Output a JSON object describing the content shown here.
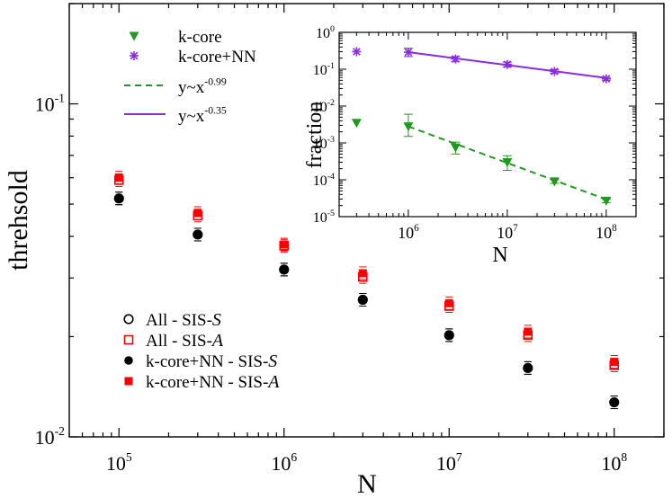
{
  "chart_data": [
    {
      "type": "scatter",
      "scale": "log-log",
      "xlabel": "N",
      "ylabel": "threhsold",
      "xlim": [
        50000,
        200000000
      ],
      "ylim": [
        0.01,
        0.2
      ],
      "x_ticks": [
        {
          "value": 100000,
          "base": "10",
          "exp": "5"
        },
        {
          "value": 1000000,
          "base": "10",
          "exp": "6"
        },
        {
          "value": 10000000,
          "base": "10",
          "exp": "7"
        },
        {
          "value": 100000000,
          "base": "10",
          "exp": "8"
        }
      ],
      "y_ticks": [
        {
          "value": 0.01,
          "base": "10",
          "exp": "-2"
        },
        {
          "value": 0.1,
          "base": "10",
          "exp": "-1"
        }
      ],
      "x": [
        100000,
        300000,
        1000000,
        3000000,
        10000000,
        30000000,
        100000000
      ],
      "series": [
        {
          "name": "All - SIS-",
          "suffix": "S",
          "marker": "open-circle",
          "color": "#000000",
          "values": [
            0.052,
            0.0405,
            0.0318,
            0.0258,
            0.0202,
            0.0161,
            0.0127
          ]
        },
        {
          "name": "All - SIS-",
          "suffix": "A",
          "marker": "open-square",
          "color": "#ff0000",
          "values": [
            0.059,
            0.0462,
            0.0375,
            0.0302,
            0.0247,
            0.0202,
            0.0164
          ]
        },
        {
          "name": "k-core+NN - SIS-",
          "suffix": "S",
          "marker": "filled-circle",
          "color": "#000000",
          "values": [
            0.052,
            0.0405,
            0.0318,
            0.0258,
            0.0202,
            0.0161,
            0.0127
          ]
        },
        {
          "name": "k-core+NN - SIS-",
          "suffix": "A",
          "marker": "filled-square",
          "color": "#ff0000",
          "values": [
            0.06,
            0.047,
            0.0378,
            0.031,
            0.0252,
            0.0207,
            0.0168
          ]
        }
      ]
    },
    {
      "type": "scatter",
      "scale": "log-log",
      "inset": true,
      "xlabel": "N",
      "ylabel": "fraction",
      "xlim": [
        200000,
        200000000
      ],
      "ylim": [
        1e-05,
        1
      ],
      "x_ticks": [
        {
          "value": 1000000,
          "base": "10",
          "exp": "6"
        },
        {
          "value": 10000000,
          "base": "10",
          "exp": "7"
        },
        {
          "value": 100000000,
          "base": "10",
          "exp": "8"
        }
      ],
      "y_ticks": [
        {
          "value": 1e-05,
          "base": "10",
          "exp": "-5"
        },
        {
          "value": 0.0001,
          "base": "10",
          "exp": "-4"
        },
        {
          "value": 0.001,
          "base": "10",
          "exp": "-3"
        },
        {
          "value": 0.01,
          "base": "10",
          "exp": "-2"
        },
        {
          "value": 0.1,
          "base": "10",
          "exp": "-1"
        },
        {
          "value": 1,
          "base": "10",
          "exp": "0"
        }
      ],
      "x": [
        300000,
        1000000,
        3000000,
        10000000,
        30000000,
        100000000
      ],
      "series": [
        {
          "name": "k-core",
          "marker": "triangle-down",
          "color": "#1f9a1f",
          "values": [
            0.0035,
            0.0028,
            0.00075,
            0.0003,
            9e-05,
            2.7e-05
          ],
          "err_low": [
            0.0035,
            0.0015,
            0.0005,
            0.00018,
            8e-05,
            2.4e-05
          ],
          "err_high": [
            0.0035,
            0.006,
            0.00105,
            0.00045,
            0.0001,
            3e-05
          ]
        },
        {
          "name": "k-core+NN",
          "marker": "asterisk",
          "color": "#8a2be2",
          "values": [
            0.3,
            0.29,
            0.19,
            0.135,
            0.087,
            0.055
          ],
          "err_low": [
            0.3,
            0.22,
            0.16,
            0.115,
            0.078,
            0.05
          ],
          "err_high": [
            0.3,
            0.37,
            0.22,
            0.155,
            0.097,
            0.06
          ]
        }
      ],
      "fits": [
        {
          "label_base": "y~x",
          "exponent": "-0.99",
          "style": "dashed",
          "color": "#1f9a1f",
          "x_range": [
            1000000,
            100000000
          ],
          "y_start": 0.0028
        },
        {
          "label_base": "y~x",
          "exponent": "-0.35",
          "style": "solid",
          "color": "#8a2be2",
          "x_range": [
            1000000,
            100000000
          ],
          "y_start": 0.29
        }
      ]
    }
  ],
  "legend_top": [
    {
      "label": "k-core"
    },
    {
      "label": "k-core+NN"
    },
    {
      "label": "y~x",
      "exp": "-0.99"
    },
    {
      "label": "y~x",
      "exp": "-0.35"
    }
  ],
  "legend_bottom": [
    {
      "label": "All - SIS-",
      "suffix": "S"
    },
    {
      "label": "All - SIS-",
      "suffix": "A"
    },
    {
      "label": "k-core+NN - SIS-",
      "suffix": "S"
    },
    {
      "label": "k-core+NN - SIS-",
      "suffix": "A"
    }
  ]
}
